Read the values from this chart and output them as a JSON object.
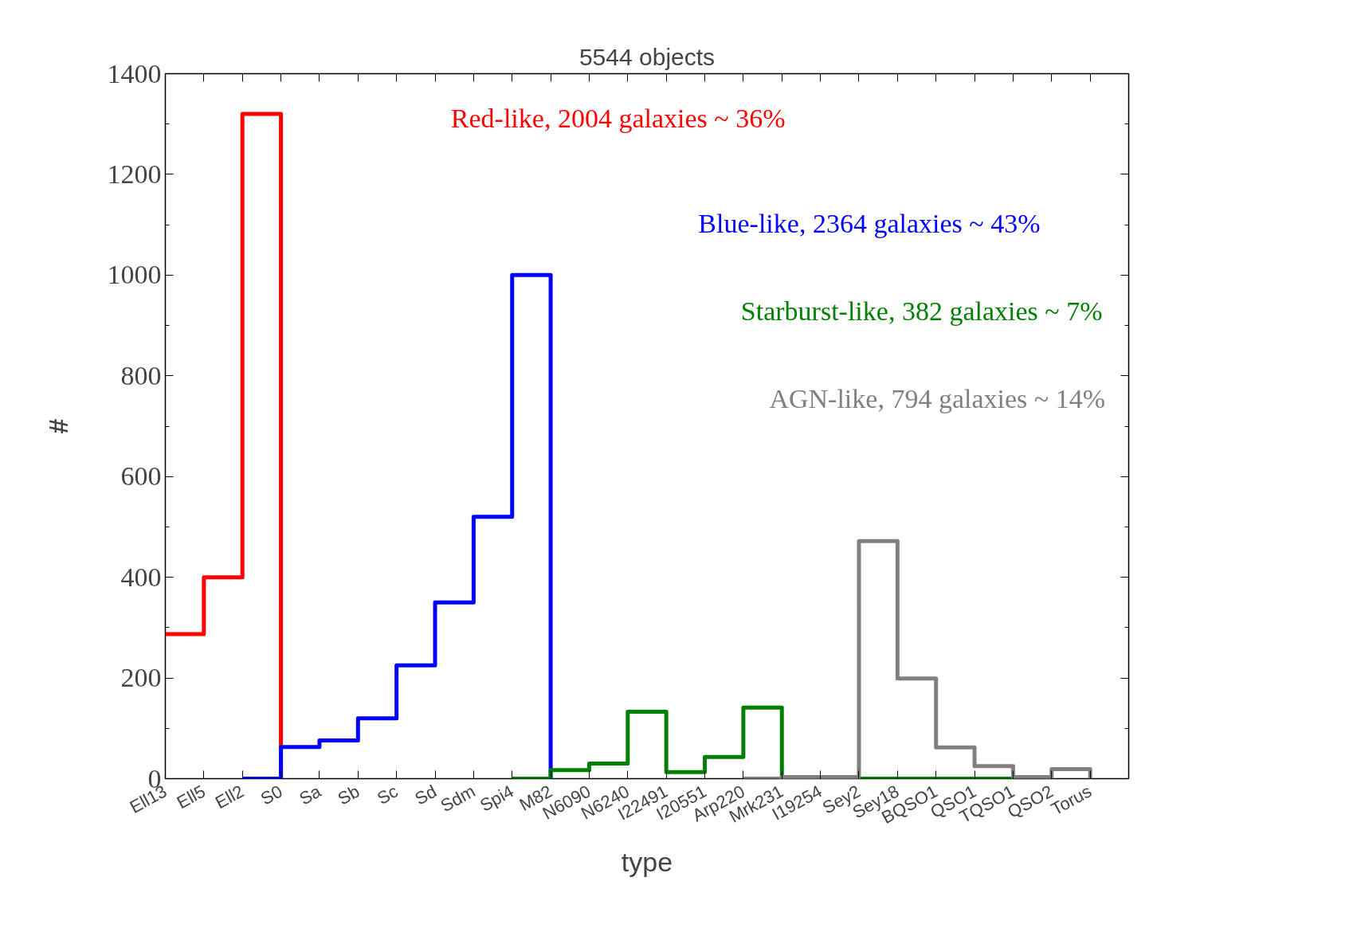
{
  "chart_data": {
    "type": "step",
    "title": "5544 objects",
    "xlabel": "type",
    "ylabel": "#",
    "categories": [
      "Ell13",
      "Ell5",
      "Ell2",
      "S0",
      "Sa",
      "Sb",
      "Sc",
      "Sd",
      "Sdm",
      "Spi4",
      "M82",
      "N6090",
      "N6240",
      "I22491",
      "I20551",
      "Arp220",
      "Mrk231",
      "I19254",
      "Sey2",
      "Sey18",
      "BQSO1",
      "QSO1",
      "TQSO1",
      "QSO2",
      "Torus"
    ],
    "ylim": [
      0,
      1400
    ],
    "yticks": [
      0,
      200,
      400,
      600,
      800,
      1000,
      1200,
      1400
    ],
    "grid": false,
    "series": [
      {
        "name": "Red-like, 2004 galaxies ~ 36%",
        "color": "#ff0000",
        "values": [
          287,
          400,
          1320,
          0,
          null,
          null,
          null,
          null,
          null,
          null,
          null,
          null,
          null,
          null,
          null,
          null,
          null,
          null,
          null,
          null,
          null,
          null,
          null,
          null,
          null
        ]
      },
      {
        "name": "Blue-like, 2364 galaxies ~ 43%",
        "color": "#0000ff",
        "values": [
          null,
          null,
          0,
          63,
          76,
          120,
          225,
          350,
          520,
          1000,
          0,
          null,
          null,
          null,
          null,
          null,
          null,
          null,
          null,
          null,
          null,
          null,
          null,
          null,
          null
        ]
      },
      {
        "name": "Starburst-like, 382 galaxies ~ 7%",
        "color": "#008000",
        "values": [
          null,
          null,
          null,
          null,
          null,
          null,
          null,
          null,
          null,
          0,
          17,
          30,
          133,
          13,
          43,
          141,
          0,
          0,
          0,
          0,
          0,
          0,
          0,
          null,
          null
        ]
      },
      {
        "name": "AGN-like, 794 galaxies  ~ 14%",
        "color": "#808080",
        "values": [
          null,
          null,
          null,
          null,
          null,
          null,
          null,
          null,
          null,
          null,
          null,
          null,
          null,
          null,
          null,
          0,
          3,
          3,
          472,
          199,
          62,
          25,
          3,
          19,
          0
        ]
      }
    ]
  }
}
